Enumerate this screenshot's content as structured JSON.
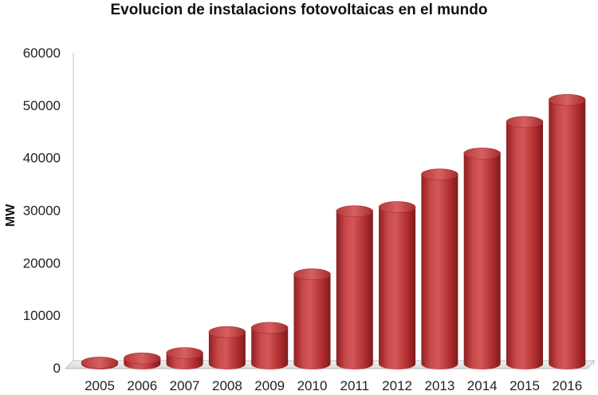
{
  "chart_data": {
    "type": "bar",
    "title": "Evolucion de instalacions fotovoltaicas  en el mundo",
    "xlabel": "",
    "ylabel": "MW",
    "categories": [
      "2005",
      "2006",
      "2007",
      "2008",
      "2009",
      "2010",
      "2011",
      "2012",
      "2013",
      "2014",
      "2015",
      "2016"
    ],
    "values": [
      1000,
      1800,
      2800,
      6800,
      7600,
      17800,
      29800,
      30600,
      36800,
      40800,
      46800,
      51000
    ],
    "ylim": [
      0,
      60000
    ],
    "yticks": [
      "0",
      "10000",
      "20000",
      "30000",
      "40000",
      "50000",
      "60000"
    ],
    "grid": false,
    "legend": "none",
    "bar_color": "#c0393a"
  }
}
